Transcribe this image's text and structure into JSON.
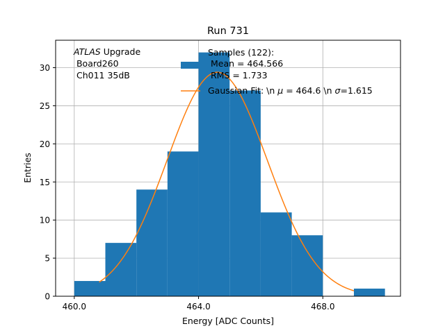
{
  "chart_data": {
    "type": "bar",
    "title": "Run 731",
    "xlabel": "Energy [ADC Counts]",
    "ylabel": "Entries",
    "xlim": [
      459.4,
      470.5
    ],
    "ylim": [
      0,
      33.6
    ],
    "grid": true,
    "x_ticks": [
      {
        "value": 460,
        "label": "460.0"
      },
      {
        "value": 464,
        "label": "464.0"
      },
      {
        "value": 468,
        "label": "468.0"
      }
    ],
    "y_ticks": [
      {
        "value": 0,
        "label": "0"
      },
      {
        "value": 5,
        "label": "5"
      },
      {
        "value": 10,
        "label": "10"
      },
      {
        "value": 15,
        "label": "15"
      },
      {
        "value": 20,
        "label": "20"
      },
      {
        "value": 25,
        "label": "25"
      },
      {
        "value": 30,
        "label": "30"
      }
    ],
    "bin_edges": [
      460,
      461,
      462,
      463,
      464,
      465,
      466,
      467,
      468,
      469,
      470
    ],
    "counts": [
      2,
      7,
      14,
      19,
      32,
      27,
      11,
      8,
      0,
      1
    ],
    "bar_color": "#1f77b4",
    "fit": {
      "name": "Gaussian Fit",
      "mu": 464.6,
      "sigma": 1.615,
      "amplitude": 29.4,
      "x_range": [
        460.8,
        469.0
      ],
      "color": "#ff7f0e"
    },
    "legend_placement": "top-center"
  },
  "annotation": {
    "experiment": "ATLAS",
    "label_rest": " Upgrade",
    "board": " Board260",
    "channel": " Ch011 35dB"
  },
  "legend": {
    "hist_label_1": "Samples (122):",
    "hist_label_2": " Mean = 464.566",
    "hist_label_3": " RMS = 1.733",
    "fit_label": "Gaussian Fit: \\n $\\mu$ = 464.6 \\n $\\sigma$=1.615",
    "fit_label_prefix": "Gaussian Fit: \\n ",
    "mu_symbol": "μ",
    "fit_label_mid": " = 464.6 \\n ",
    "sigma_symbol": "σ",
    "fit_label_end": "=1.615"
  }
}
